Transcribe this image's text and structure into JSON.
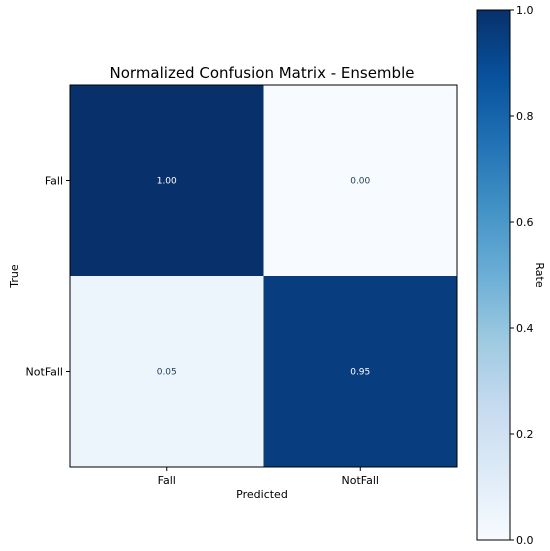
{
  "chart_data": {
    "type": "heatmap",
    "title": "Normalized Confusion Matrix - Ensemble",
    "xlabel": "Predicted",
    "ylabel": "True",
    "x_categories": [
      "Fall",
      "NotFall"
    ],
    "y_categories": [
      "Fall",
      "NotFall"
    ],
    "values": [
      [
        1.0,
        0.0
      ],
      [
        0.05,
        0.95
      ]
    ],
    "cell_labels": [
      [
        "1.00",
        "0.00"
      ],
      [
        "0.05",
        "0.95"
      ]
    ],
    "colorbar": {
      "label": "Rate",
      "range": [
        0.0,
        1.0
      ],
      "ticks": [
        {
          "value": 0.0,
          "label": "0.0"
        },
        {
          "value": 0.2,
          "label": "0.2"
        },
        {
          "value": 0.4,
          "label": "0.4"
        },
        {
          "value": 0.6,
          "label": "0.6"
        },
        {
          "value": 0.8,
          "label": "0.8"
        },
        {
          "value": 1.0,
          "label": "1.0"
        }
      ],
      "colormap": [
        "#f7fbff",
        "#deebf7",
        "#c6dbef",
        "#9ecae1",
        "#6baed6",
        "#4292c6",
        "#2171b5",
        "#08519c",
        "#08306b"
      ]
    }
  }
}
